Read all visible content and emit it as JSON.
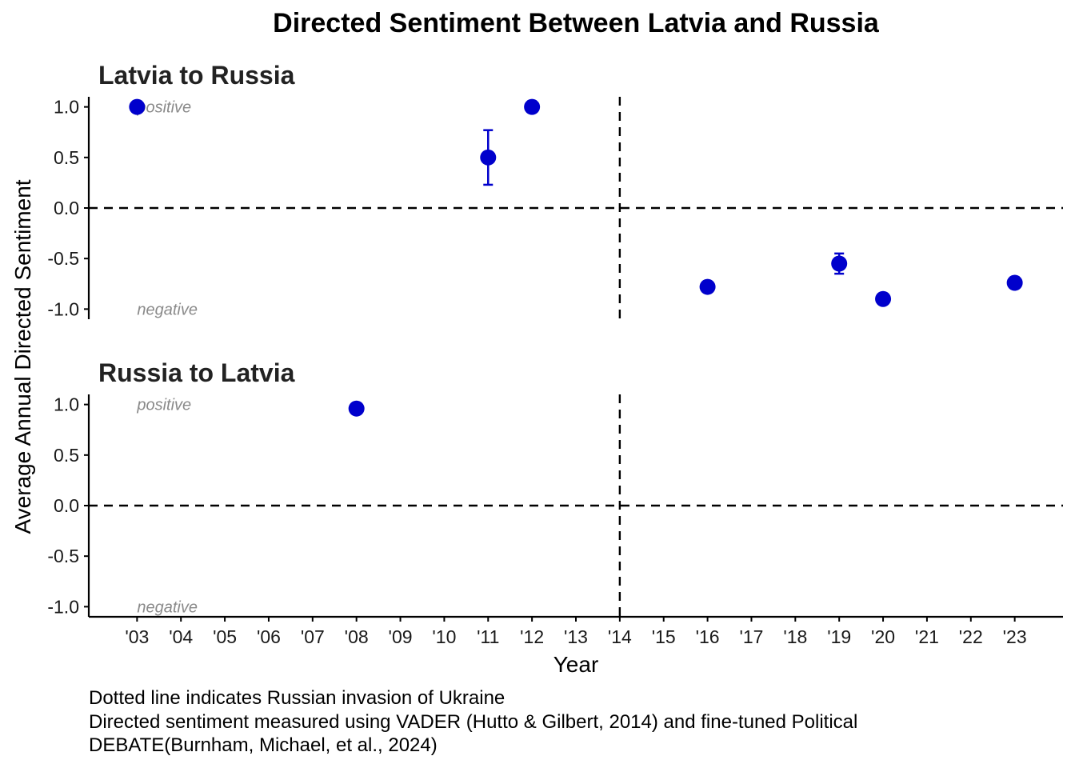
{
  "chart_data": {
    "type": "scatter",
    "title": "Directed Sentiment Between Latvia and Russia",
    "xlabel": "Year",
    "ylabel": "Average Annual Directed Sentiment",
    "x_tick_labels": [
      "'03",
      "'04",
      "'05",
      "'06",
      "'07",
      "'08",
      "'09",
      "'10",
      "'11",
      "'12",
      "'13",
      "'14",
      "'15",
      "'16",
      "'17",
      "'18",
      "'19",
      "'20",
      "'21",
      "'22",
      "'23"
    ],
    "y_tick_labels": [
      "1.0",
      "0.5",
      "0.0",
      "-0.5",
      "-1.0"
    ],
    "y_ticks": [
      1.0,
      0.5,
      0.0,
      -0.5,
      -1.0
    ],
    "xlim": [
      2001.9,
      2024.1
    ],
    "ylim": [
      -1.1,
      1.1
    ],
    "invasion_year": 2014,
    "reference_y": 0,
    "point_color": "#0000cc",
    "annotations": {
      "positive": "positive",
      "negative": "negative"
    },
    "panels": [
      {
        "name": "Latvia to Russia",
        "points": [
          {
            "x": 2003,
            "y": 1.0
          },
          {
            "x": 2011,
            "y": 0.5,
            "ymin": 0.23,
            "ymax": 0.77
          },
          {
            "x": 2012,
            "y": 1.0
          },
          {
            "x": 2016,
            "y": -0.78
          },
          {
            "x": 2019,
            "y": -0.55,
            "ymin": -0.65,
            "ymax": -0.45
          },
          {
            "x": 2020,
            "y": -0.9
          },
          {
            "x": 2023,
            "y": -0.74
          }
        ]
      },
      {
        "name": "Russia to Latvia",
        "points": [
          {
            "x": 2008,
            "y": 0.96
          }
        ]
      }
    ],
    "caption": [
      "Dotted line indicates Russian invasion of Ukraine",
      "Directed sentiment measured using VADER (Hutto & Gilbert, 2014) and fine-tuned Political",
      "DEBATE(Burnham, Michael, et al., 2024)"
    ]
  }
}
